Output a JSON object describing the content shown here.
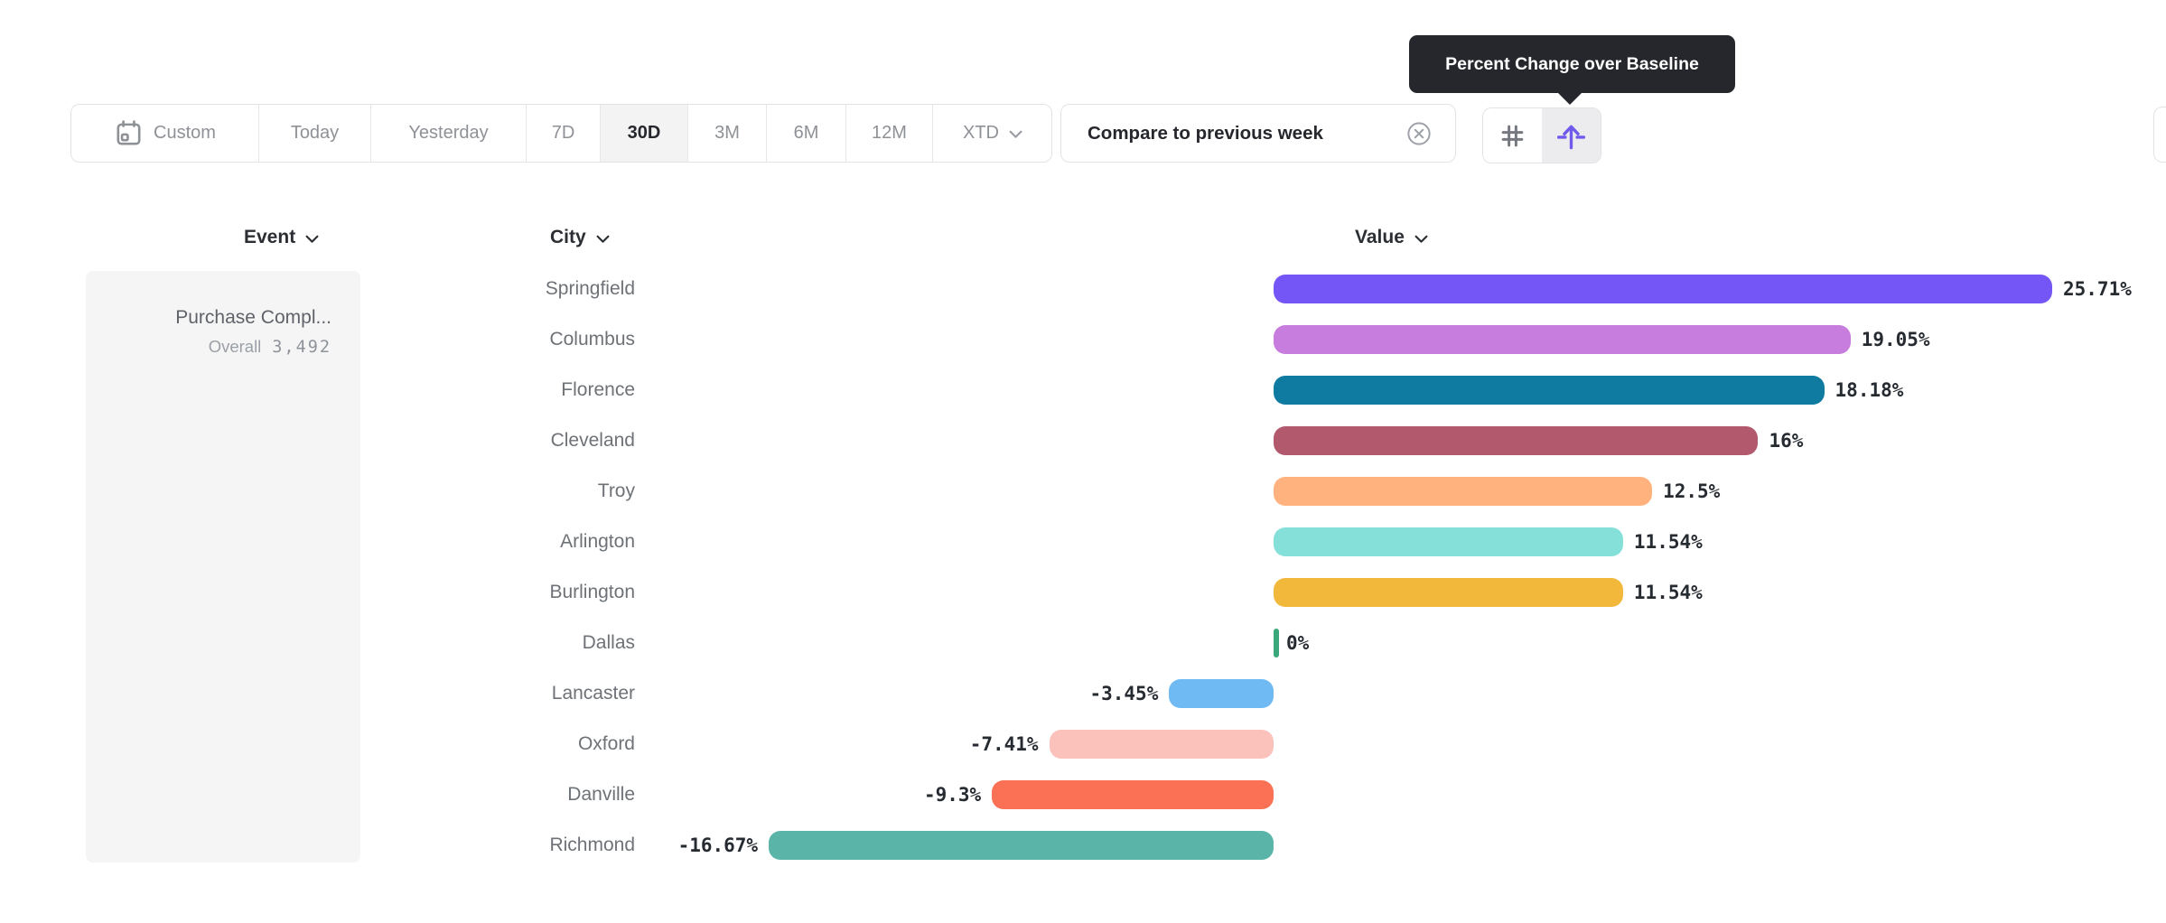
{
  "tooltip": {
    "text": "Percent Change over Baseline"
  },
  "toolbar": {
    "date_ranges": [
      {
        "label": "Custom",
        "icon": "calendar",
        "selected": false
      },
      {
        "label": "Today",
        "selected": false
      },
      {
        "label": "Yesterday",
        "selected": false
      },
      {
        "label": "7D",
        "selected": false
      },
      {
        "label": "30D",
        "selected": true
      },
      {
        "label": "3M",
        "selected": false
      },
      {
        "label": "6M",
        "selected": false
      },
      {
        "label": "12M",
        "selected": false
      },
      {
        "label": "XTD",
        "selected": false,
        "has_chevron": true
      }
    ],
    "compare_chip": {
      "label": "Compare to previous week",
      "icon": "circle-x"
    },
    "view_toggle": [
      {
        "name": "absolute-numbers",
        "icon": "hash",
        "active": false
      },
      {
        "name": "percent-change-baseline",
        "icon": "arrow-baseline",
        "active": true
      }
    ]
  },
  "columns": {
    "event": "Event",
    "city": "City",
    "value": "Value"
  },
  "event_panel": {
    "title": "Purchase Compl...",
    "overall_label": "Overall",
    "overall_value": "3,492"
  },
  "chart_data": {
    "type": "bar",
    "orientation": "horizontal",
    "title": "",
    "xlabel": "City",
    "ylabel": "Value",
    "value_unit": "percent change vs baseline",
    "baseline": 0,
    "xlim": [
      -16.67,
      25.71
    ],
    "grid": false,
    "categories": [
      "Springfield",
      "Columbus",
      "Florence",
      "Cleveland",
      "Troy",
      "Arlington",
      "Burlington",
      "Dallas",
      "Lancaster",
      "Oxford",
      "Danville",
      "Richmond"
    ],
    "values": [
      25.71,
      19.05,
      18.18,
      16,
      12.5,
      11.54,
      11.54,
      0,
      -3.45,
      -7.41,
      -9.3,
      -16.67
    ],
    "labels": [
      "25.71%",
      "19.05%",
      "18.18%",
      "16%",
      "12.5%",
      "11.54%",
      "11.54%",
      "0%",
      "-3.45%",
      "-7.41%",
      "-9.3%",
      "-16.67%"
    ],
    "colors": [
      "#7456f6",
      "#c77ddd",
      "#0f7ba1",
      "#b2596d",
      "#ffb27d",
      "#84e0d8",
      "#f2b83c",
      "#3aa87a",
      "#6fbaf2",
      "#fbc2bb",
      "#fa7156",
      "#5bb4a8"
    ]
  },
  "colors": {
    "accent_purple": "#6f5aec",
    "tooltip_bg": "#26272d",
    "border": "#e2e3e5",
    "selected_segment_bg": "#f3f3f4",
    "muted_text": "#8e9196",
    "dark_text": "#25272c",
    "city_text": "#6e7277",
    "panel_bg": "#f5f5f6",
    "zero_tick_green": "#3aa87a"
  }
}
